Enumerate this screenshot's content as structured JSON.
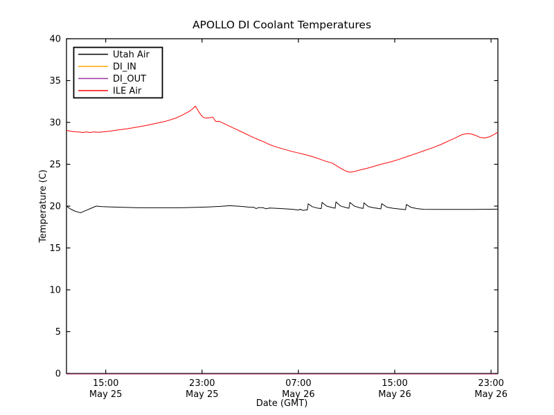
{
  "window": {
    "background": "#ffffff"
  },
  "chart_data": {
    "type": "line",
    "title": "APOLLO DI Coolant Temperatures",
    "xlabel": "Date (GMT)",
    "ylabel": "Temperature (C)",
    "ylim": [
      0,
      40
    ],
    "yticks": [
      0,
      5,
      10,
      15,
      20,
      25,
      30,
      35,
      40
    ],
    "x_unit": "hours since May 25 00:00 GMT",
    "xlim": [
      11.74,
      47.57
    ],
    "xticks": [
      {
        "t": 15,
        "time": "15:00",
        "date": "May 25"
      },
      {
        "t": 23,
        "time": "23:00",
        "date": "May 25"
      },
      {
        "t": 31,
        "time": "07:00",
        "date": "May 26"
      },
      {
        "t": 39,
        "time": "15:00",
        "date": "May 26"
      },
      {
        "t": 47,
        "time": "23:00",
        "date": "May 26"
      }
    ],
    "grid": false,
    "legend_position": "upper left",
    "axis_color": "#000000",
    "series": [
      {
        "name": "Utah Air",
        "color": "#000000",
        "points": [
          [
            11.74,
            20.0
          ],
          [
            12.0,
            19.72
          ],
          [
            12.4,
            19.42
          ],
          [
            12.9,
            19.2
          ],
          [
            13.3,
            19.45
          ],
          [
            13.8,
            19.75
          ],
          [
            14.2,
            20.0
          ],
          [
            14.7,
            19.93
          ],
          [
            15.5,
            19.9
          ],
          [
            16.5,
            19.85
          ],
          [
            17.5,
            19.82
          ],
          [
            18.5,
            19.8
          ],
          [
            19.5,
            19.8
          ],
          [
            20.5,
            19.8
          ],
          [
            21.5,
            19.82
          ],
          [
            22.5,
            19.86
          ],
          [
            23.5,
            19.9
          ],
          [
            24.5,
            19.97
          ],
          [
            25.3,
            20.05
          ],
          [
            25.9,
            20.0
          ],
          [
            26.4,
            19.95
          ],
          [
            26.9,
            19.88
          ],
          [
            27.3,
            19.85
          ],
          [
            27.5,
            19.7
          ],
          [
            27.7,
            19.83
          ],
          [
            28.1,
            19.8
          ],
          [
            28.3,
            19.68
          ],
          [
            28.6,
            19.78
          ],
          [
            29.1,
            19.74
          ],
          [
            29.6,
            19.7
          ],
          [
            30.1,
            19.66
          ],
          [
            30.6,
            19.6
          ],
          [
            31.0,
            19.52
          ],
          [
            31.15,
            19.63
          ],
          [
            31.35,
            19.5
          ],
          [
            31.75,
            19.55
          ],
          [
            31.82,
            20.28
          ],
          [
            32.15,
            19.93
          ],
          [
            32.55,
            19.78
          ],
          [
            32.9,
            19.7
          ],
          [
            32.97,
            20.45
          ],
          [
            33.35,
            20.0
          ],
          [
            33.75,
            19.84
          ],
          [
            34.05,
            19.75
          ],
          [
            34.12,
            20.5
          ],
          [
            34.5,
            20.02
          ],
          [
            34.9,
            19.84
          ],
          [
            35.2,
            19.74
          ],
          [
            35.28,
            20.45
          ],
          [
            35.65,
            20.0
          ],
          [
            36.05,
            19.82
          ],
          [
            36.38,
            19.72
          ],
          [
            36.45,
            20.4
          ],
          [
            36.8,
            19.95
          ],
          [
            37.25,
            19.8
          ],
          [
            37.85,
            19.67
          ],
          [
            37.92,
            20.3
          ],
          [
            38.35,
            19.88
          ],
          [
            38.85,
            19.74
          ],
          [
            39.9,
            19.58
          ],
          [
            39.97,
            20.2
          ],
          [
            40.35,
            19.85
          ],
          [
            40.85,
            19.7
          ],
          [
            41.4,
            19.62
          ],
          [
            42.5,
            19.6
          ],
          [
            44.0,
            19.6
          ],
          [
            45.5,
            19.61
          ],
          [
            47.0,
            19.63
          ],
          [
            47.57,
            19.64
          ]
        ]
      },
      {
        "name": "DI_IN",
        "color": "#ffa500",
        "points": [
          [
            11.74,
            0
          ],
          [
            47.57,
            0
          ]
        ]
      },
      {
        "name": "DI_OUT",
        "color": "#993399",
        "points": [
          [
            11.74,
            0
          ],
          [
            47.57,
            0
          ]
        ]
      },
      {
        "name": "ILE Air",
        "color": "#ff0000",
        "points": [
          [
            11.74,
            29.05
          ],
          [
            12.1,
            28.95
          ],
          [
            12.5,
            28.88
          ],
          [
            12.8,
            28.85
          ],
          [
            13.1,
            28.8
          ],
          [
            13.4,
            28.86
          ],
          [
            13.7,
            28.8
          ],
          [
            14.0,
            28.86
          ],
          [
            14.4,
            28.83
          ],
          [
            14.8,
            28.88
          ],
          [
            15.3,
            28.95
          ],
          [
            16.0,
            29.1
          ],
          [
            16.8,
            29.25
          ],
          [
            17.6,
            29.45
          ],
          [
            18.4,
            29.65
          ],
          [
            19.2,
            29.9
          ],
          [
            20.0,
            30.15
          ],
          [
            20.8,
            30.5
          ],
          [
            21.4,
            30.9
          ],
          [
            21.9,
            31.3
          ],
          [
            22.2,
            31.6
          ],
          [
            22.45,
            31.95
          ],
          [
            22.6,
            31.6
          ],
          [
            22.8,
            31.1
          ],
          [
            23.05,
            30.65
          ],
          [
            23.3,
            30.5
          ],
          [
            23.6,
            30.55
          ],
          [
            23.9,
            30.62
          ],
          [
            24.05,
            30.3
          ],
          [
            24.15,
            30.1
          ],
          [
            24.4,
            30.15
          ],
          [
            24.7,
            29.95
          ],
          [
            25.2,
            29.6
          ],
          [
            25.8,
            29.2
          ],
          [
            26.4,
            28.8
          ],
          [
            26.9,
            28.45
          ],
          [
            27.5,
            28.05
          ],
          [
            28.1,
            27.7
          ],
          [
            28.6,
            27.35
          ],
          [
            29.2,
            27.05
          ],
          [
            29.8,
            26.8
          ],
          [
            30.4,
            26.55
          ],
          [
            31.0,
            26.35
          ],
          [
            31.6,
            26.15
          ],
          [
            32.2,
            25.9
          ],
          [
            32.8,
            25.6
          ],
          [
            33.3,
            25.35
          ],
          [
            33.8,
            25.15
          ],
          [
            34.2,
            24.8
          ],
          [
            34.6,
            24.45
          ],
          [
            35.0,
            24.15
          ],
          [
            35.3,
            24.05
          ],
          [
            35.7,
            24.15
          ],
          [
            36.2,
            24.35
          ],
          [
            36.8,
            24.55
          ],
          [
            37.4,
            24.8
          ],
          [
            38.0,
            25.05
          ],
          [
            38.7,
            25.3
          ],
          [
            39.4,
            25.6
          ],
          [
            40.1,
            25.95
          ],
          [
            40.8,
            26.3
          ],
          [
            41.5,
            26.65
          ],
          [
            42.2,
            27.0
          ],
          [
            42.9,
            27.4
          ],
          [
            43.5,
            27.8
          ],
          [
            44.1,
            28.2
          ],
          [
            44.6,
            28.55
          ],
          [
            45.0,
            28.65
          ],
          [
            45.4,
            28.6
          ],
          [
            45.8,
            28.4
          ],
          [
            46.1,
            28.2
          ],
          [
            46.5,
            28.15
          ],
          [
            46.9,
            28.3
          ],
          [
            47.3,
            28.6
          ],
          [
            47.57,
            28.85
          ]
        ]
      }
    ]
  }
}
